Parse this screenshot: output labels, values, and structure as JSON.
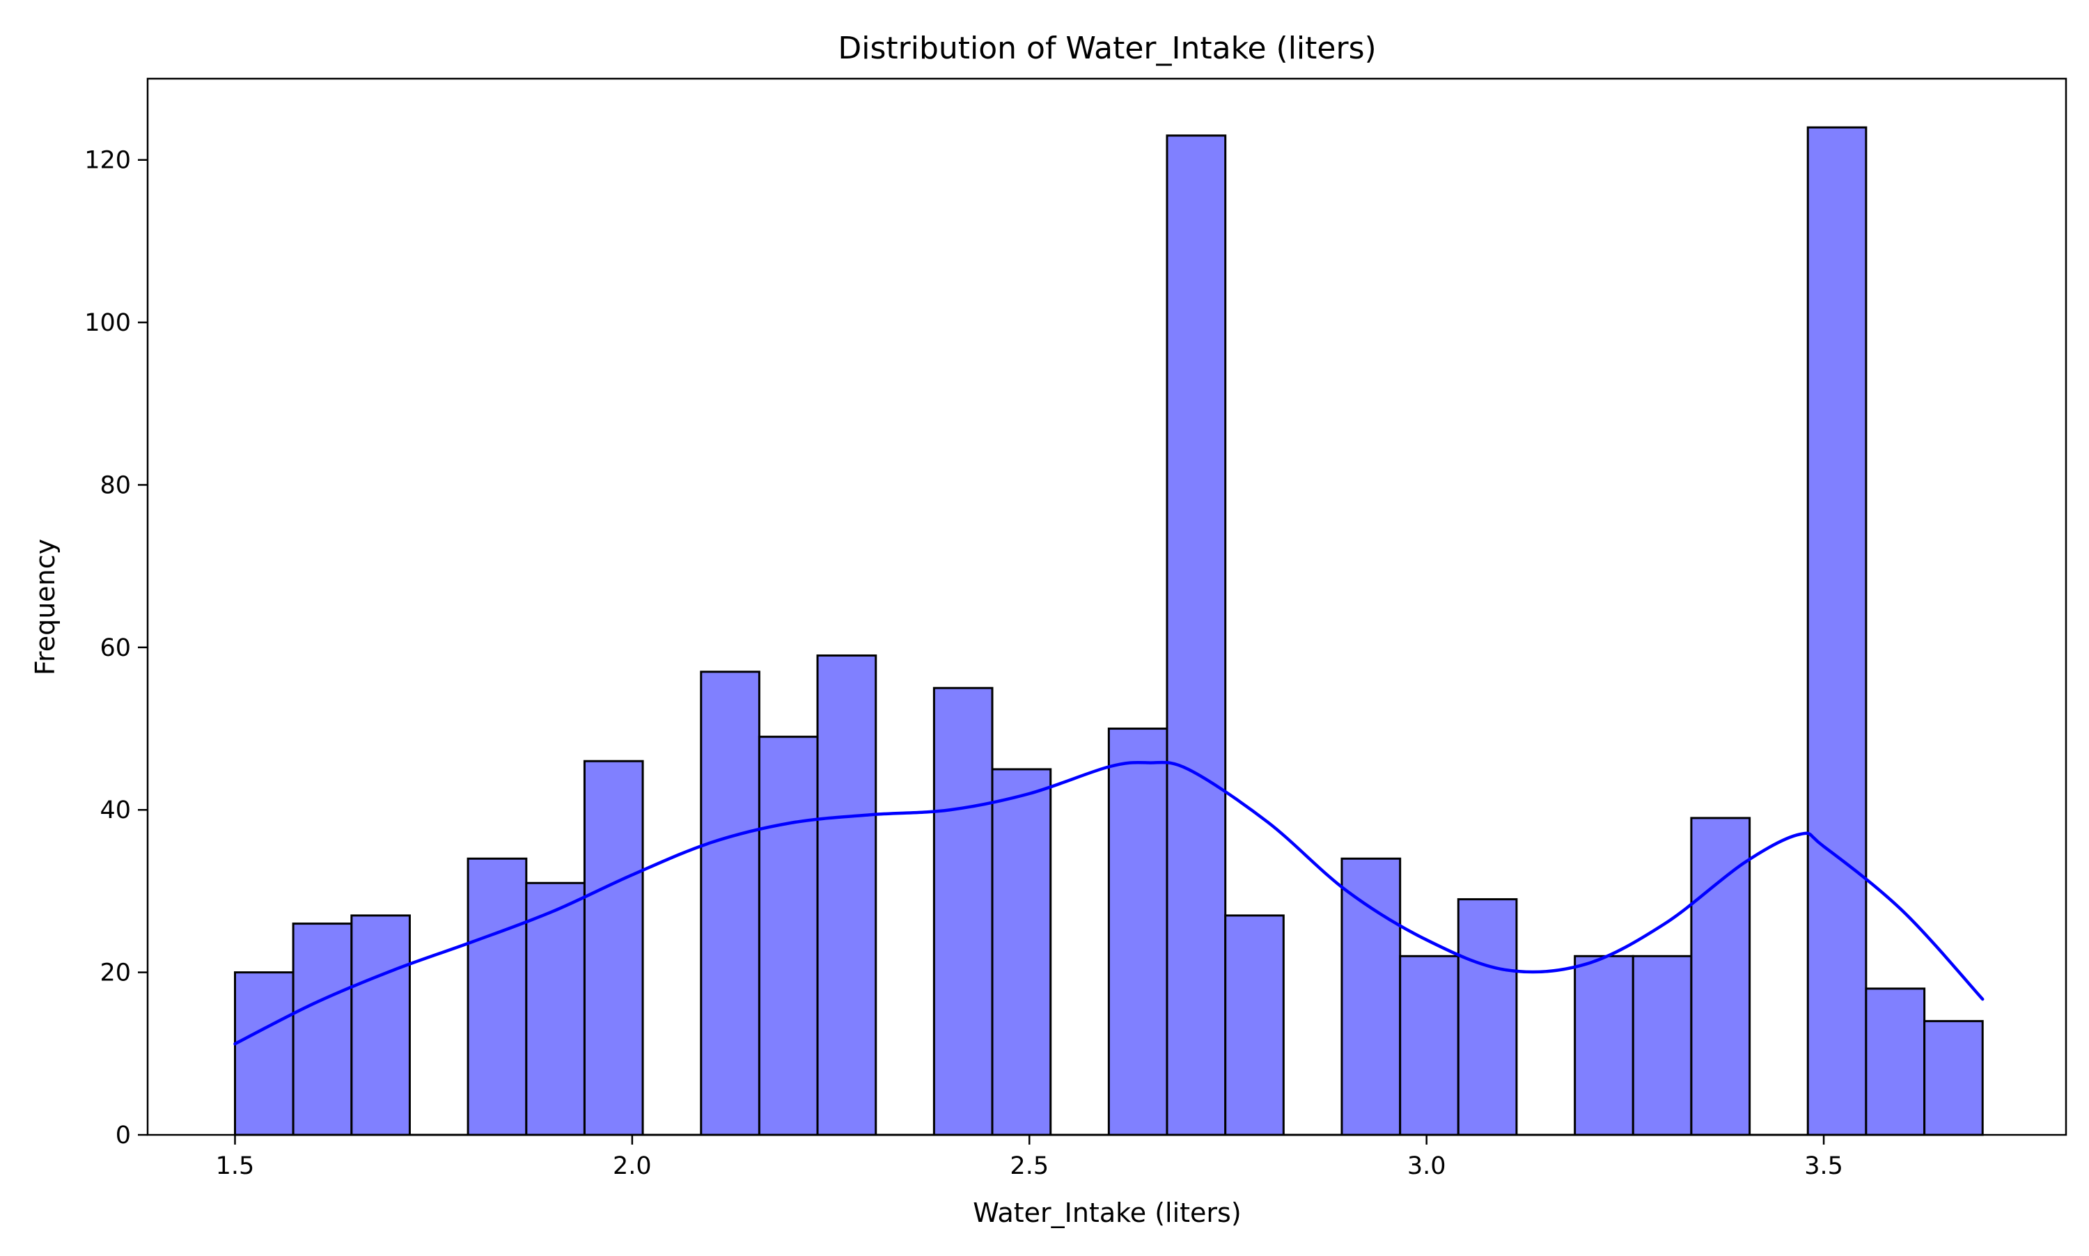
{
  "chart_data": {
    "type": "bar",
    "title": "Distribution of Water_Intake (liters)",
    "xlabel": "Water_Intake (liters)",
    "ylabel": "Frequency",
    "xlim": [
      1.39,
      3.805
    ],
    "ylim": [
      0,
      130
    ],
    "x_ticks": [
      1.5,
      2.0,
      2.5,
      3.0,
      3.5
    ],
    "x_tick_labels": [
      "1.5",
      "2.0",
      "2.5",
      "3.0",
      "3.5"
    ],
    "y_ticks": [
      0,
      20,
      40,
      60,
      80,
      100,
      120
    ],
    "y_tick_labels": [
      "0",
      "20",
      "40",
      "60",
      "80",
      "100",
      "120"
    ],
    "bin_edges": [
      1.5,
      1.5733,
      1.6467,
      1.72,
      1.7933,
      1.8667,
      1.94,
      2.0133,
      2.0867,
      2.16,
      2.2333,
      2.3067,
      2.38,
      2.4533,
      2.5267,
      2.6,
      2.6733,
      2.7467,
      2.82,
      2.8933,
      2.9667,
      3.04,
      3.1133,
      3.1867,
      3.26,
      3.3333,
      3.4067,
      3.48,
      3.5533,
      3.6267,
      3.7
    ],
    "values": [
      20,
      26,
      27,
      0,
      34,
      31,
      46,
      0,
      57,
      49,
      59,
      0,
      55,
      45,
      0,
      50,
      123,
      27,
      0,
      34,
      22,
      29,
      0,
      22,
      22,
      39,
      0,
      124,
      18,
      14
    ],
    "kde": {
      "x": [
        1.5,
        1.6,
        1.7,
        1.8,
        1.9,
        2.0,
        2.1,
        2.2,
        2.3,
        2.4,
        2.5,
        2.6,
        2.65,
        2.7,
        2.8,
        2.9,
        3.0,
        3.1,
        3.2,
        3.3,
        3.4,
        3.47,
        3.5,
        3.6,
        3.7
      ],
      "y": [
        11.2,
        16.2,
        20.3,
        23.8,
        27.5,
        32.0,
        36.0,
        38.4,
        39.4,
        40.0,
        42.0,
        45.3,
        45.8,
        45.0,
        38.5,
        30.0,
        24.0,
        20.3,
        21.0,
        26.0,
        33.5,
        37.0,
        35.5,
        27.5,
        16.7
      ]
    },
    "bar_color": "#8080ff",
    "bar_edge_color": "#000000",
    "kde_color": "#0000ff",
    "grid": false,
    "legend": "none"
  }
}
